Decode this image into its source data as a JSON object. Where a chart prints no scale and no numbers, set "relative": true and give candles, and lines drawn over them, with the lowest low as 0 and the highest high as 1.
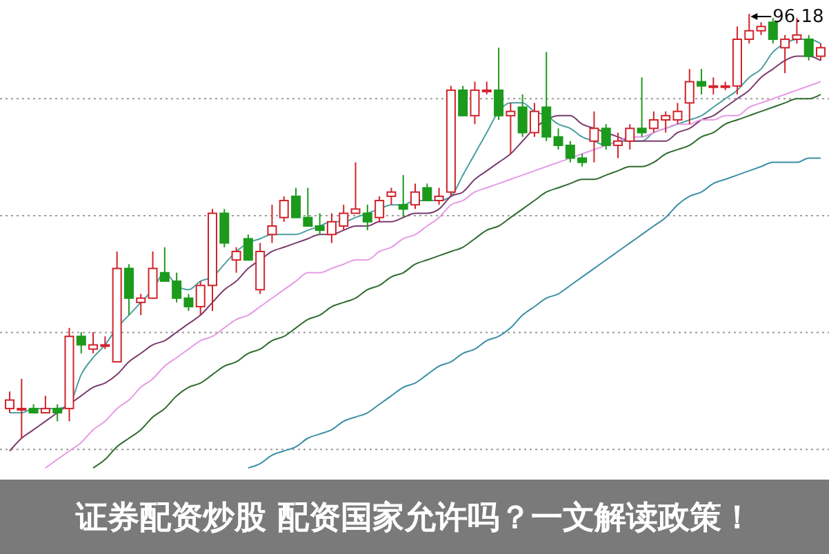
{
  "chart_data": {
    "type": "candlestick",
    "title": "证券配资炒股 配资国家允许吗？一文解读政策！",
    "relative": true,
    "grid": true,
    "categories": [
      null,
      null,
      null,
      null,
      null,
      null,
      null,
      null,
      null,
      null,
      null,
      null,
      null,
      null,
      null,
      null,
      null,
      null,
      null,
      null,
      null,
      null,
      null,
      null,
      null,
      null,
      null,
      null,
      null,
      null,
      null,
      null,
      null,
      null,
      null,
      null,
      null,
      null,
      null,
      null,
      null,
      null,
      null,
      null,
      null,
      null,
      null,
      null,
      null,
      null,
      null,
      null,
      null,
      null,
      null,
      null,
      null,
      null,
      null,
      null,
      null,
      null,
      null,
      null,
      null,
      null,
      null,
      null,
      null
    ],
    "ohlc": [
      [
        0.07,
        0.11,
        0.06,
        0.09
      ],
      [
        0.07,
        0.14,
        0,
        0.07
      ],
      [
        0.07,
        0.08,
        0.06,
        0.06
      ],
      [
        0.06,
        0.1,
        0.06,
        0.07
      ],
      [
        0.07,
        0.08,
        0.04,
        0.06
      ],
      [
        0.07,
        0.26,
        0.04,
        0.24
      ],
      [
        0.24,
        0.25,
        0.2,
        0.22
      ],
      [
        0.21,
        0.25,
        0.2,
        0.22
      ],
      [
        0.22,
        0.24,
        0.21,
        0.22
      ],
      [
        0.18,
        0.44,
        0.18,
        0.4
      ],
      [
        0.4,
        0.41,
        0.29,
        0.33
      ],
      [
        0.32,
        0.34,
        0.29,
        0.33
      ],
      [
        0.33,
        0.44,
        0.33,
        0.4
      ],
      [
        0.39,
        0.45,
        0.37,
        0.37
      ],
      [
        0.37,
        0.39,
        0.32,
        0.33
      ],
      [
        0.33,
        0.34,
        0.3,
        0.31
      ],
      [
        0.31,
        0.37,
        0.29,
        0.36
      ],
      [
        0.36,
        0.54,
        0.3,
        0.53
      ],
      [
        0.53,
        0.54,
        0.45,
        0.46
      ],
      [
        0.42,
        0.45,
        0.39,
        0.44
      ],
      [
        0.47,
        0.48,
        0.42,
        0.42
      ],
      [
        0.35,
        0.46,
        0.34,
        0.44
      ],
      [
        0.48,
        0.55,
        0.46,
        0.5
      ],
      [
        0.52,
        0.57,
        0.51,
        0.56
      ],
      [
        0.57,
        0.59,
        0.52,
        0.52
      ],
      [
        0.52,
        0.59,
        0.5,
        0.5
      ],
      [
        0.5,
        0.53,
        0.48,
        0.49
      ],
      [
        0.48,
        0.53,
        0.46,
        0.51
      ],
      [
        0.5,
        0.55,
        0.49,
        0.53
      ],
      [
        0.53,
        0.65,
        0.53,
        0.54
      ],
      [
        0.53,
        0.55,
        0.49,
        0.51
      ],
      [
        0.52,
        0.57,
        0.51,
        0.56
      ],
      [
        0.57,
        0.59,
        0.55,
        0.58
      ],
      [
        0.55,
        0.62,
        0.52,
        0.54
      ],
      [
        0.55,
        0.6,
        0.54,
        0.58
      ],
      [
        0.59,
        0.6,
        0.56,
        0.56
      ],
      [
        0.56,
        0.59,
        0.55,
        0.57
      ],
      [
        0.58,
        0.83,
        0.57,
        0.82
      ],
      [
        0.82,
        0.83,
        0.76,
        0.76
      ],
      [
        0.76,
        0.84,
        0.74,
        0.82
      ],
      [
        0.82,
        0.84,
        0.81,
        0.82
      ],
      [
        0.82,
        0.92,
        0.75,
        0.76
      ],
      [
        0.76,
        0.79,
        0.67,
        0.77
      ],
      [
        0.78,
        0.81,
        0.71,
        0.72
      ],
      [
        0.72,
        0.79,
        0.71,
        0.77
      ],
      [
        0.78,
        0.91,
        0.7,
        0.71
      ],
      [
        0.71,
        0.73,
        0.68,
        0.69
      ],
      [
        0.69,
        0.7,
        0.65,
        0.66
      ],
      [
        0.66,
        0.67,
        0.64,
        0.65
      ],
      [
        0.7,
        0.77,
        0.65,
        0.73
      ],
      [
        0.73,
        0.74,
        0.68,
        0.69
      ],
      [
        0.69,
        0.72,
        0.66,
        0.7
      ],
      [
        0.7,
        0.74,
        0.68,
        0.73
      ],
      [
        0.73,
        0.85,
        0.71,
        0.72
      ],
      [
        0.73,
        0.77,
        0.72,
        0.75
      ],
      [
        0.75,
        0.77,
        0.72,
        0.76
      ],
      [
        0.75,
        0.79,
        0.74,
        0.77
      ],
      [
        0.79,
        0.87,
        0.74,
        0.84
      ],
      [
        0.84,
        0.87,
        0.81,
        0.83
      ],
      [
        0.83,
        0.85,
        0.81,
        0.83
      ],
      [
        0.83,
        0.84,
        0.82,
        0.83
      ],
      [
        0.83,
        0.97,
        0.81,
        0.94
      ],
      [
        0.94,
        1,
        0.93,
        0.96
      ],
      [
        0.96,
        0.98,
        0.95,
        0.97
      ],
      [
        0.98,
        0.99,
        0.93,
        0.94
      ],
      [
        0.92,
        0.95,
        0.86,
        0.94
      ],
      [
        0.94,
        0.99,
        0.93,
        0.95
      ],
      [
        0.94,
        0.95,
        0.89,
        0.9
      ],
      [
        0.9,
        0.93,
        0.89,
        0.92
      ]
    ],
    "series": [
      {
        "type": "line",
        "color": "#4a9fa0",
        "values": [
          0.06,
          0.06,
          0.07,
          0.07,
          0.07,
          0.08,
          0.15,
          0.19,
          0.22,
          0.26,
          0.29,
          0.32,
          0.35,
          0.39,
          0.36,
          0.35,
          0.37,
          0.38,
          0.41,
          0.44,
          0.46,
          0.47,
          0.48,
          0.48,
          0.48,
          0.49,
          0.5,
          0.51,
          0.51,
          0.52,
          0.53,
          0.54,
          0.55,
          0.55,
          0.56,
          0.56,
          0.56,
          0.57,
          0.62,
          0.67,
          0.72,
          0.77,
          0.79,
          0.79,
          0.77,
          0.76,
          0.74,
          0.73,
          0.71,
          0.7,
          0.69,
          0.7,
          0.7,
          0.7,
          0.72,
          0.73,
          0.74,
          0.75,
          0.76,
          0.78,
          0.8,
          0.82,
          0.85,
          0.87,
          0.91,
          0.93,
          0.94,
          0.94,
          0.93
        ]
      },
      {
        "type": "line",
        "color": "#7a3b6c",
        "values": [
          -0.03,
          0.0,
          0.02,
          0.04,
          0.06,
          0.08,
          0.1,
          0.12,
          0.13,
          0.15,
          0.18,
          0.2,
          0.22,
          0.23,
          0.25,
          0.27,
          0.29,
          0.32,
          0.35,
          0.37,
          0.4,
          0.42,
          0.44,
          0.45,
          0.46,
          0.47,
          0.48,
          0.48,
          0.49,
          0.5,
          0.5,
          0.51,
          0.51,
          0.52,
          0.53,
          0.53,
          0.54,
          0.57,
          0.58,
          0.61,
          0.63,
          0.65,
          0.67,
          0.7,
          0.73,
          0.75,
          0.76,
          0.76,
          0.74,
          0.73,
          0.72,
          0.71,
          0.7,
          0.7,
          0.7,
          0.7,
          0.72,
          0.73,
          0.75,
          0.76,
          0.78,
          0.8,
          0.82,
          0.85,
          0.87,
          0.89,
          0.9,
          0.9,
          0.89
        ]
      },
      {
        "type": "line",
        "color": "#e69ae6",
        "values": [
          null,
          null,
          null,
          -0.07,
          -0.05,
          -0.03,
          -0.01,
          0.02,
          0.04,
          0.07,
          0.09,
          0.12,
          0.14,
          0.17,
          0.19,
          0.21,
          0.23,
          0.24,
          0.26,
          0.28,
          0.29,
          0.31,
          0.33,
          0.35,
          0.37,
          0.39,
          0.39,
          0.4,
          0.41,
          0.42,
          0.42,
          0.44,
          0.45,
          0.47,
          0.48,
          0.5,
          0.52,
          0.55,
          0.56,
          0.58,
          0.59,
          0.6,
          0.61,
          0.62,
          0.63,
          0.64,
          0.65,
          0.66,
          0.67,
          0.68,
          0.69,
          0.7,
          0.71,
          0.71,
          0.72,
          0.73,
          0.74,
          0.74,
          0.75,
          0.75,
          0.76,
          0.76,
          0.78,
          0.79,
          0.8,
          0.81,
          0.82,
          0.83,
          0.84
        ]
      },
      {
        "type": "line",
        "color": "#2e6b2e",
        "values": [
          null,
          null,
          null,
          null,
          null,
          null,
          null,
          -0.07,
          -0.05,
          -0.02,
          0.0,
          0.02,
          0.05,
          0.07,
          0.1,
          0.12,
          0.13,
          0.15,
          0.17,
          0.18,
          0.2,
          0.21,
          0.23,
          0.24,
          0.26,
          0.28,
          0.29,
          0.31,
          0.32,
          0.33,
          0.35,
          0.36,
          0.38,
          0.39,
          0.41,
          0.42,
          0.43,
          0.44,
          0.45,
          0.47,
          0.49,
          0.5,
          0.52,
          0.54,
          0.56,
          0.58,
          0.59,
          0.6,
          0.61,
          0.61,
          0.62,
          0.63,
          0.64,
          0.64,
          0.65,
          0.67,
          0.68,
          0.69,
          0.71,
          0.72,
          0.74,
          0.75,
          0.76,
          0.77,
          0.78,
          0.79,
          0.8,
          0.8,
          0.81
        ]
      },
      {
        "type": "line",
        "color": "#3a8ea6",
        "values": [
          null,
          null,
          null,
          null,
          null,
          null,
          null,
          null,
          null,
          null,
          null,
          null,
          null,
          null,
          null,
          null,
          null,
          null,
          null,
          null,
          -0.07,
          -0.06,
          -0.04,
          -0.03,
          -0.02,
          0.0,
          0.01,
          0.02,
          0.04,
          0.05,
          0.06,
          0.08,
          0.1,
          0.12,
          0.13,
          0.15,
          0.17,
          0.18,
          0.2,
          0.21,
          0.23,
          0.24,
          0.26,
          0.29,
          0.31,
          0.33,
          0.34,
          0.36,
          0.38,
          0.4,
          0.42,
          0.44,
          0.46,
          0.48,
          0.5,
          0.52,
          0.55,
          0.57,
          0.58,
          0.6,
          0.61,
          0.62,
          0.63,
          0.64,
          0.65,
          0.65,
          0.65,
          0.66,
          0.66
        ]
      }
    ],
    "annotations": [
      {
        "text": "96.18",
        "y": 1
      }
    ]
  }
}
